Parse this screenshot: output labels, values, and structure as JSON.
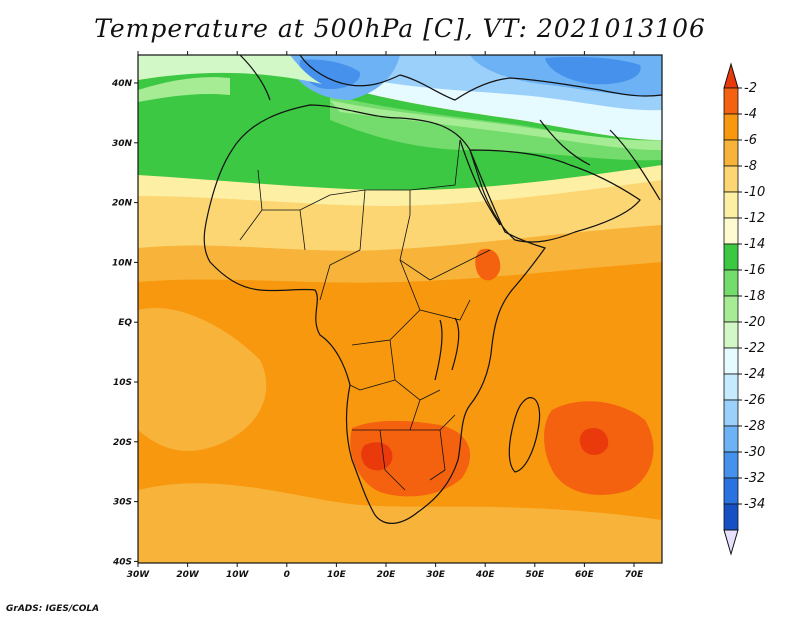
{
  "title": "Temperature at 500hPa [C], VT: 2021013106",
  "credit": "GrADS: IGES/COLA",
  "axes": {
    "x_ticks": [
      "30W",
      "20W",
      "10W",
      "0",
      "10E",
      "20E",
      "30E",
      "40E",
      "50E",
      "60E",
      "70E"
    ],
    "y_ticks": [
      "40N",
      "30N",
      "20N",
      "10N",
      "EQ",
      "10S",
      "20S",
      "30S",
      "40S"
    ]
  },
  "colorbar": {
    "levels": [
      "-2",
      "-4",
      "-6",
      "-8",
      "-10",
      "-12",
      "-14",
      "-16",
      "-18",
      "-20",
      "-22",
      "-24",
      "-26",
      "-28",
      "-30",
      "-32",
      "-34"
    ],
    "colors": [
      "#ea3a0c",
      "#f4620f",
      "#f8980f",
      "#f8b43a",
      "#fbd673",
      "#fdf0a4",
      "#fefbd0",
      "#3cc843",
      "#74dc6c",
      "#a6ec95",
      "#d3f8c8",
      "#e6fbff",
      "#c6eafe",
      "#9bd0fb",
      "#6cb2f4",
      "#4591ec",
      "#2a72df",
      "#1650c3",
      "#0b2d8c"
    ]
  },
  "field_colors": {
    "very_hot": "#ea3a0c",
    "hot": "#f4620f",
    "warm_orange": "#f8980f",
    "light_orange": "#f8b43a",
    "yellow": "#fbd673",
    "pale_yellow": "#fdf0a4",
    "green": "#3cc843",
    "mid_green": "#74dc6c",
    "light_green": "#a6ec95",
    "pale_green": "#d3f8c8",
    "pale_blue": "#e6fbff",
    "light_blue": "#9bd0fb",
    "blue": "#6cb2f4",
    "mid_blue": "#4591ec"
  }
}
